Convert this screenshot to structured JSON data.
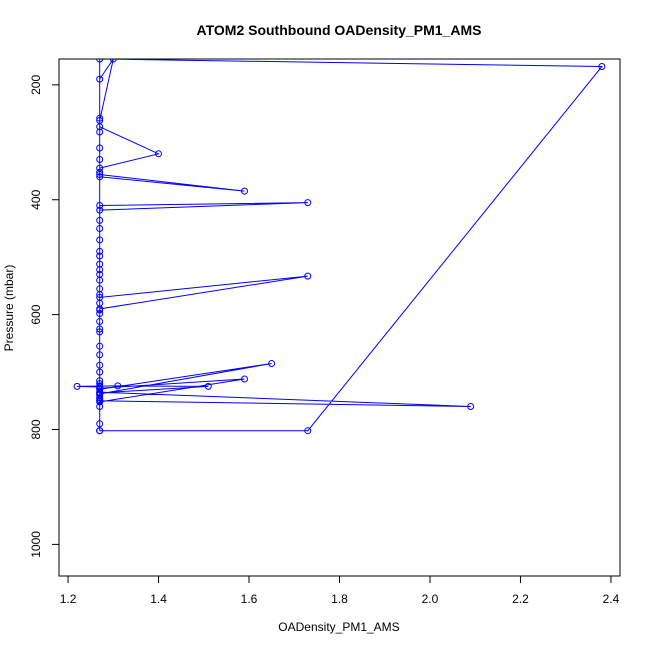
{
  "chart_data": {
    "type": "line",
    "title": "ATOM2 Southbound OADensity_PM1_AMS",
    "xlabel": "OADensity_PM1_AMS",
    "ylabel": "Pressure (mbar)",
    "xlim": [
      1.18,
      2.42
    ],
    "ylim": [
      1055,
      155
    ],
    "y_reversed": true,
    "xticks": [
      1.2,
      1.4,
      1.6,
      1.8,
      2.0,
      2.2,
      2.4
    ],
    "xtick_labels": [
      "1.2",
      "1.4",
      "1.6",
      "1.8",
      "2.0",
      "2.2",
      "2.4"
    ],
    "yticks": [
      200,
      400,
      600,
      800,
      1000
    ],
    "ytick_labels": [
      "200",
      "400",
      "600",
      "800",
      "1000"
    ],
    "grid": false,
    "series": [
      {
        "color": "#0000ff",
        "marker": "open-circle",
        "x": [
          1.27,
          1.27,
          1.27,
          1.27,
          1.27,
          1.27,
          1.3,
          1.27,
          1.27,
          1.27,
          1.4,
          1.27,
          1.27,
          1.27,
          1.27,
          1.27,
          1.59,
          1.27,
          1.27,
          1.73,
          1.27,
          1.27,
          1.27,
          1.27,
          1.27,
          1.27,
          1.27,
          1.27,
          1.27,
          1.27,
          1.27,
          1.27,
          1.27,
          1.73,
          1.27,
          1.27,
          1.27,
          1.27,
          1.27,
          1.27,
          1.27,
          1.27,
          1.27,
          1.27,
          1.27,
          1.27,
          1.65,
          1.27,
          1.27,
          1.27,
          1.59,
          1.27,
          1.27,
          1.27,
          1.22,
          1.31,
          1.51,
          1.27,
          1.27,
          1.27,
          1.27,
          2.09,
          1.27,
          1.27,
          1.27,
          1.73,
          2.38,
          1.27,
          1.27
        ],
        "y": [
          802,
          740,
          625,
          470,
          258,
          190,
          155,
          262,
          282,
          273,
          320,
          345,
          310,
          330,
          352,
          356,
          385,
          360,
          410,
          405,
          418,
          436,
          450,
          490,
          498,
          512,
          522,
          530,
          540,
          555,
          565,
          580,
          590,
          533,
          570,
          592,
          598,
          612,
          630,
          655,
          670,
          688,
          700,
          715,
          720,
          730,
          685,
          738,
          745,
          752,
          712,
          728,
          724,
          726,
          725,
          724,
          725,
          736,
          748,
          760,
          750,
          760,
          735,
          790,
          802,
          802,
          168,
          155,
          802
        ]
      }
    ]
  }
}
